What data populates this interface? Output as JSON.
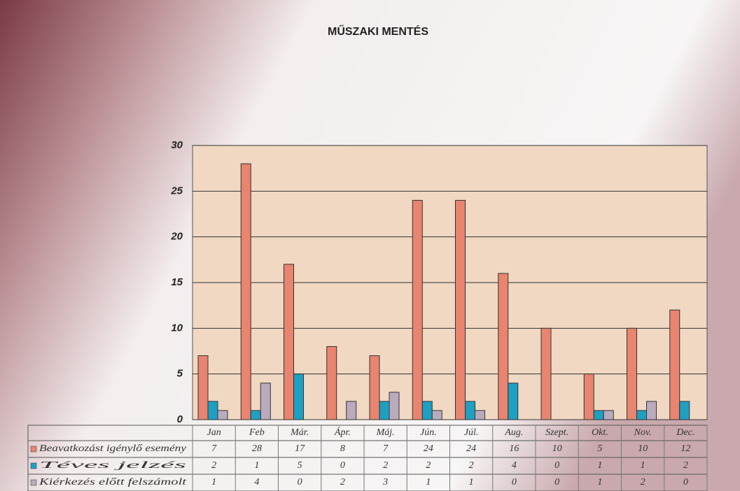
{
  "chart_data": {
    "type": "bar",
    "title": "MŰSZAKI MENTÉS",
    "categories": [
      "Jan",
      "Feb",
      "Már.",
      "Ápr.",
      "Máj.",
      "Jún.",
      "Júl.",
      "Aug.",
      "Szept.",
      "Okt.",
      "Nov.",
      "Dec."
    ],
    "series": [
      {
        "name": "Beavatkozást igénylő esemény",
        "color": "#e8846f",
        "values": [
          7,
          28,
          17,
          8,
          7,
          24,
          24,
          16,
          10,
          5,
          10,
          12
        ]
      },
      {
        "name": "Téves jelzés",
        "color": "#1ea0c2",
        "values": [
          2,
          1,
          5,
          0,
          2,
          2,
          2,
          4,
          0,
          1,
          1,
          2
        ]
      },
      {
        "name": "Kiérkezés előtt felszámolt",
        "color": "#b9abbd",
        "values": [
          1,
          4,
          0,
          2,
          3,
          1,
          1,
          0,
          0,
          1,
          2,
          0
        ]
      }
    ],
    "ylim": [
      0,
      30
    ],
    "yticks": [
      0,
      5,
      10,
      15,
      20,
      25,
      30
    ],
    "grid": true
  }
}
